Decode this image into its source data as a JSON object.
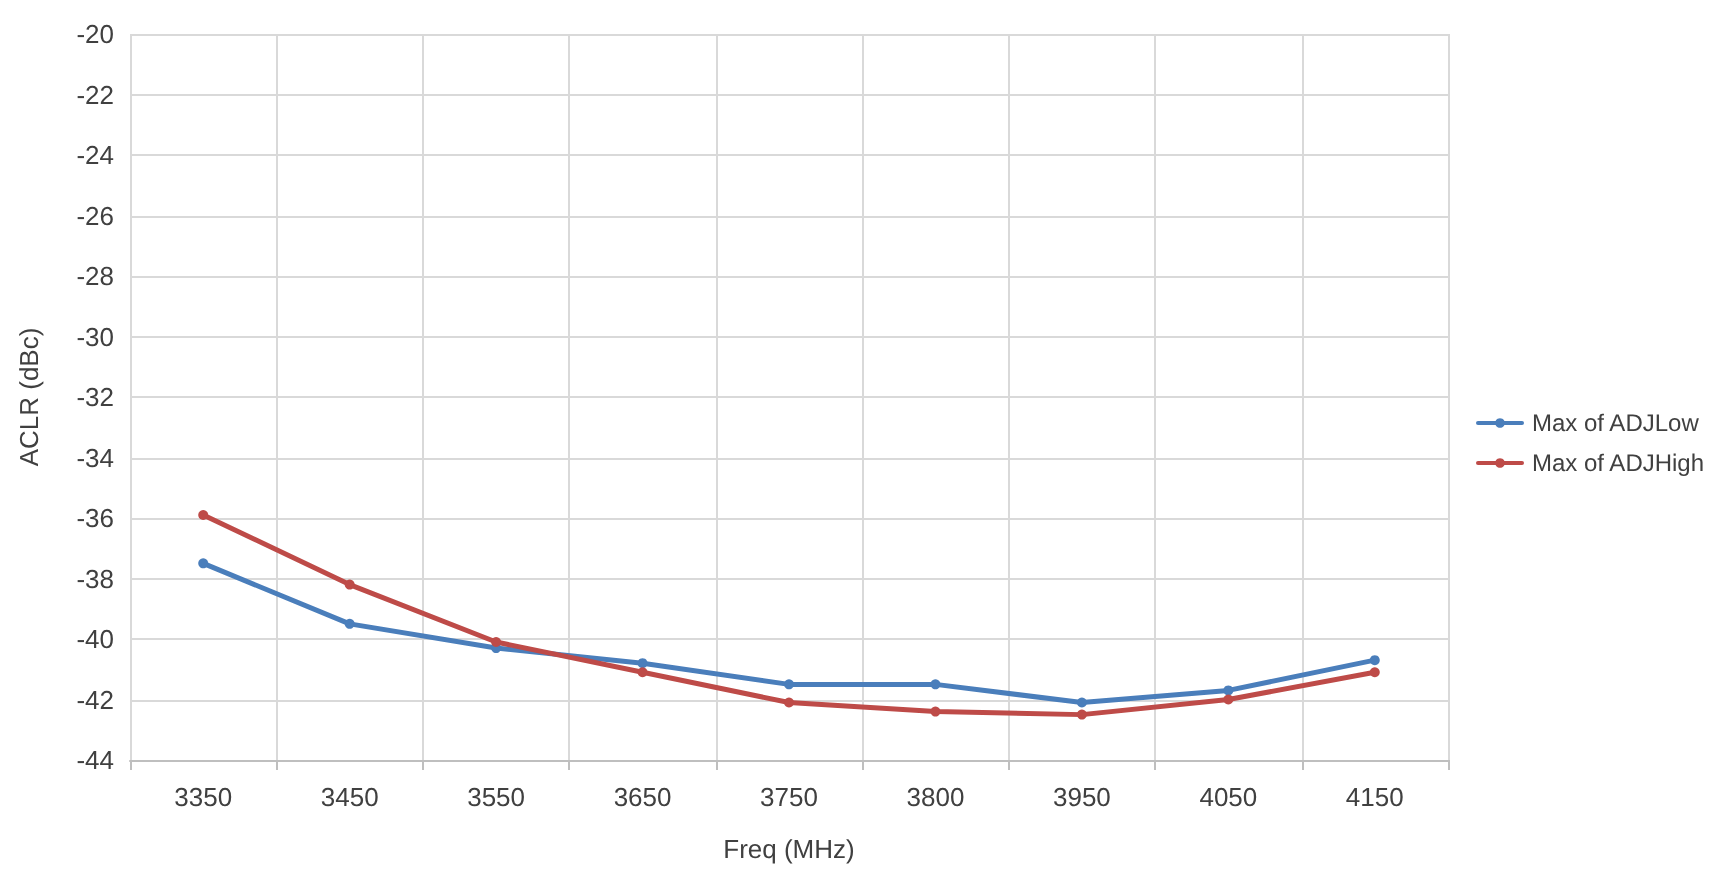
{
  "chart_data": {
    "type": "line",
    "xlabel": "Freq (MHz)",
    "ylabel": "ACLR (dBc)",
    "categories": [
      "3350",
      "3450",
      "3550",
      "3650",
      "3750",
      "3800",
      "3950",
      "4050",
      "4150"
    ],
    "series": [
      {
        "name": "Max of ADJLow",
        "color": "#4a7ebb",
        "values": [
          -37.5,
          -39.5,
          -40.3,
          -40.8,
          -41.5,
          -41.5,
          -42.1,
          -41.7,
          -40.7
        ]
      },
      {
        "name": "Max of ADJHigh",
        "color": "#be4b48",
        "values": [
          -35.9,
          -38.2,
          -40.1,
          -41.1,
          -42.1,
          -42.4,
          -42.5,
          -42.0,
          -41.1
        ]
      }
    ],
    "ylim": [
      -44,
      -20
    ],
    "yticks": [
      -44,
      -42,
      -40,
      -38,
      -36,
      -34,
      -32,
      -30,
      -28,
      -26,
      -24,
      -22,
      -20
    ],
    "grid": true,
    "legend": "right",
    "marker": "circle",
    "line_style": "solid"
  }
}
